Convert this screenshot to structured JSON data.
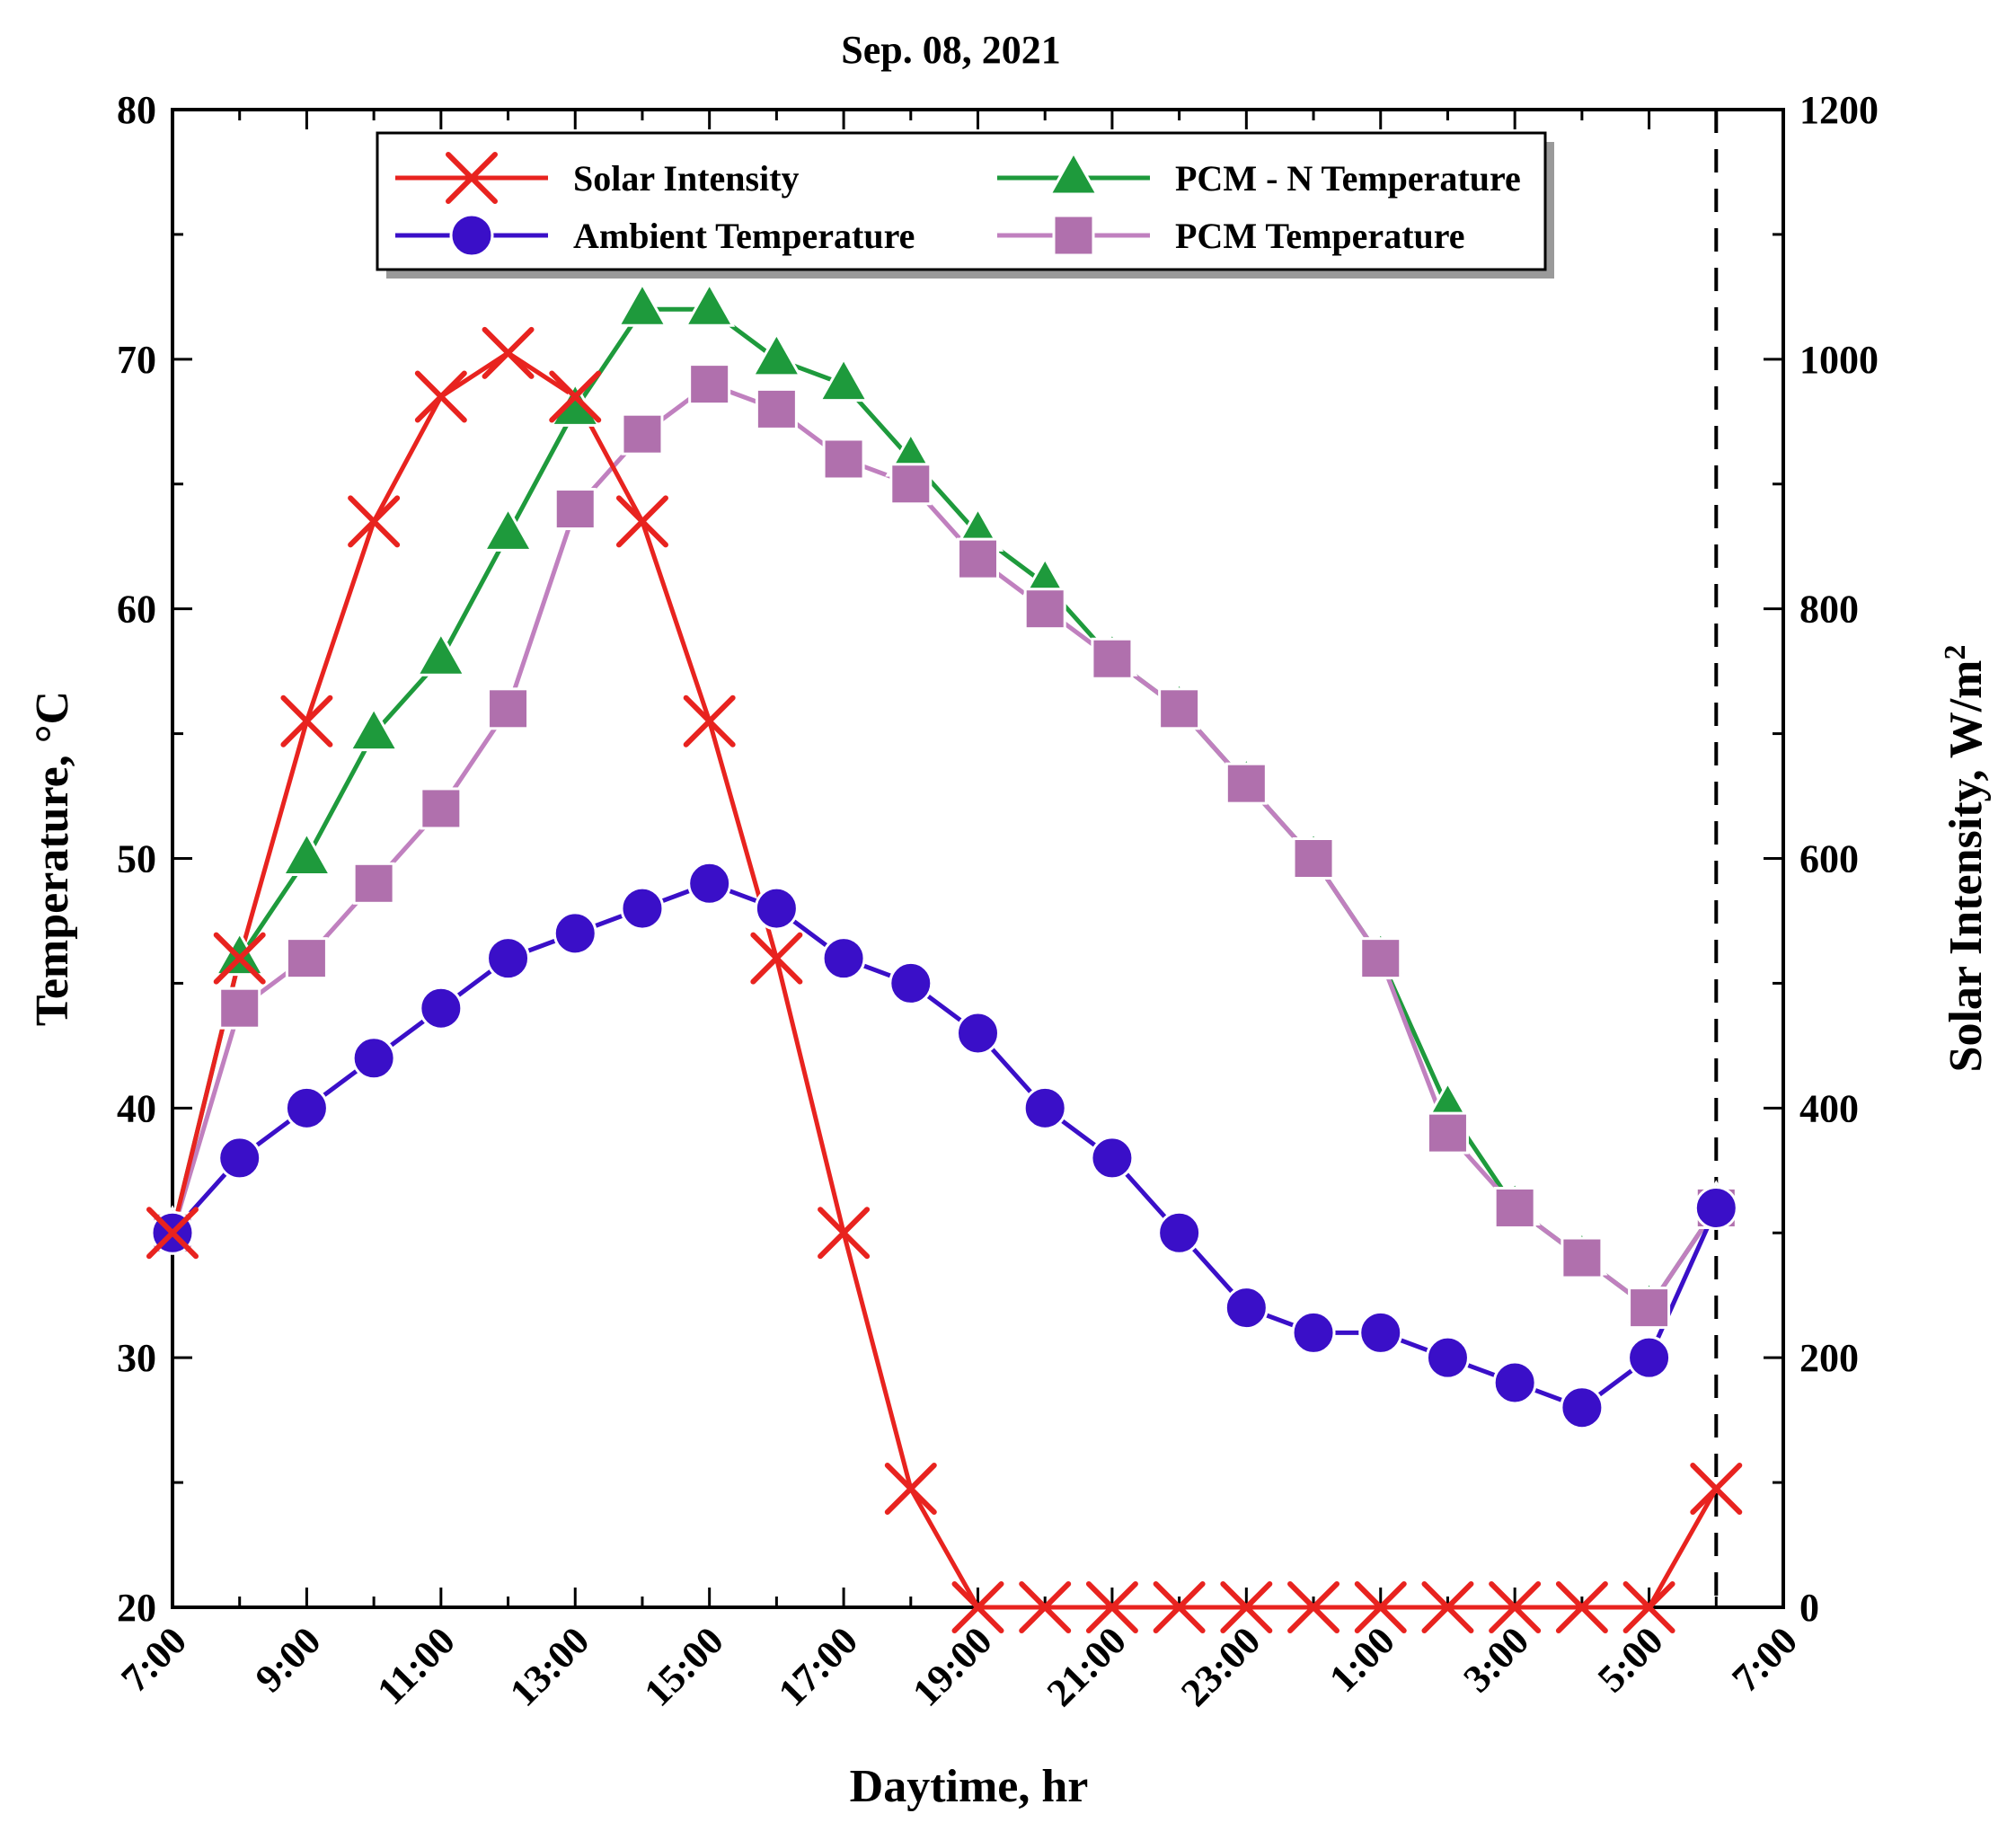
{
  "chart_data": {
    "type": "line",
    "title": "Sep. 08, 2021",
    "xlabel": "Daytime, hr",
    "ylabel": "Temperature, °C",
    "y2label": "Solar Intensity, W/m",
    "y2label_superscript": "2",
    "xlim": [
      0,
      24
    ],
    "ylim": [
      20,
      80
    ],
    "y2lim": [
      0,
      1200
    ],
    "x_tick_labels": [
      "7:00",
      "9:00",
      "11:00",
      "13:00",
      "15:00",
      "17:00",
      "19:00",
      "21:00",
      "23:00",
      "1:00",
      "3:00",
      "5:00",
      "7:00"
    ],
    "y_ticks": [
      20,
      30,
      40,
      50,
      60,
      70,
      80
    ],
    "y2_ticks": [
      0,
      200,
      400,
      600,
      800,
      1000,
      1200
    ],
    "grid": false,
    "legend_position": "top-center",
    "reference_line_x": 23,
    "series": [
      {
        "name": "Solar Intensity",
        "axis": "right",
        "color": "#e8231f",
        "marker": "x",
        "x": [
          0,
          1,
          2,
          3,
          4,
          5,
          6,
          7,
          8,
          9,
          10,
          11,
          12,
          13,
          14,
          15,
          16,
          17,
          18,
          19,
          20,
          21,
          22,
          23
        ],
        "values": [
          300,
          520,
          710,
          870,
          970,
          1005,
          970,
          870,
          710,
          520,
          300,
          95,
          0,
          0,
          0,
          0,
          0,
          0,
          0,
          0,
          0,
          0,
          0,
          95
        ]
      },
      {
        "name": "Ambient Temperature",
        "axis": "left",
        "color": "#3a0fc8",
        "marker": "circle",
        "x": [
          0,
          1,
          2,
          3,
          4,
          5,
          6,
          7,
          8,
          9,
          10,
          11,
          12,
          13,
          14,
          15,
          16,
          17,
          18,
          19,
          20,
          21,
          22,
          23
        ],
        "values": [
          35,
          38,
          40,
          42,
          44,
          46,
          47,
          48,
          49,
          48,
          46,
          45,
          43,
          40,
          38,
          35,
          32,
          31,
          31,
          30,
          29,
          28,
          30,
          36
        ]
      },
      {
        "name": "PCM - N Temperature",
        "axis": "left",
        "color": "#1e9a3c",
        "marker": "triangle",
        "x": [
          0,
          1,
          2,
          3,
          4,
          5,
          6,
          7,
          8,
          9,
          10,
          11,
          12,
          13,
          14,
          15,
          16,
          17,
          18,
          19,
          20,
          21,
          22,
          23
        ],
        "values": [
          35,
          46,
          50,
          55,
          58,
          63,
          68,
          72,
          72,
          70,
          69,
          66,
          63,
          61,
          58,
          56,
          53,
          50,
          46,
          40,
          36,
          34,
          32,
          36
        ]
      },
      {
        "name": "PCM Temperature",
        "axis": "left",
        "color": "#c080bf",
        "marker_color": "#b070ad",
        "marker": "square",
        "x": [
          0,
          1,
          2,
          3,
          4,
          5,
          6,
          7,
          8,
          9,
          10,
          11,
          12,
          13,
          14,
          15,
          16,
          17,
          18,
          19,
          20,
          21,
          22,
          23
        ],
        "values": [
          35,
          44,
          46,
          49,
          52,
          56,
          64,
          67,
          69,
          68,
          66,
          65,
          62,
          60,
          58,
          56,
          53,
          50,
          46,
          39,
          36,
          34,
          32,
          36
        ]
      }
    ]
  }
}
